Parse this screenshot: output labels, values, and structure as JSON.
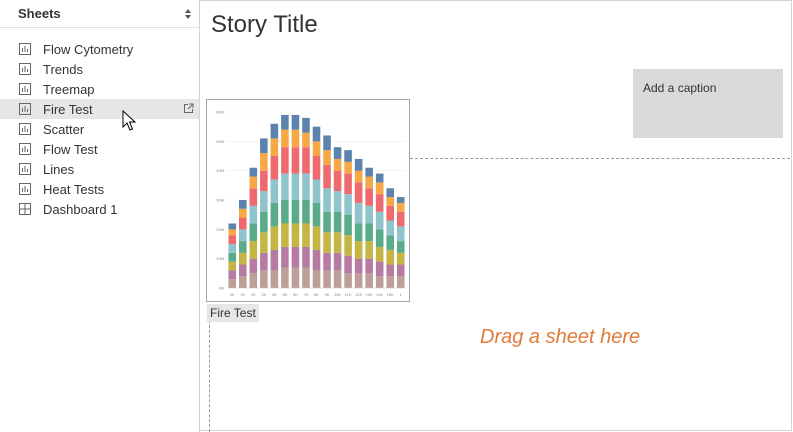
{
  "sidebar": {
    "title": "Sheets",
    "items": [
      {
        "label": "Flow Cytometry",
        "icon": "bar-chart-icon",
        "selected": false
      },
      {
        "label": "Trends",
        "icon": "bar-chart-icon",
        "selected": false
      },
      {
        "label": "Treemap",
        "icon": "bar-chart-icon",
        "selected": false
      },
      {
        "label": "Fire Test",
        "icon": "bar-chart-icon",
        "selected": true
      },
      {
        "label": "Scatter",
        "icon": "bar-chart-icon",
        "selected": false
      },
      {
        "label": "Flow Test",
        "icon": "bar-chart-icon",
        "selected": false
      },
      {
        "label": "Lines",
        "icon": "bar-chart-icon",
        "selected": false
      },
      {
        "label": "Heat Tests",
        "icon": "bar-chart-icon",
        "selected": false
      },
      {
        "label": "Dashboard 1",
        "icon": "dashboard-icon",
        "selected": false
      }
    ]
  },
  "story": {
    "title": "Story Title",
    "caption_placeholder": "Add a caption",
    "drop_hint": "Drag a sheet here",
    "sheet_label": "Fire Test"
  },
  "colors": {
    "accent_hint": "#e07b36",
    "series": [
      "#bd9e99",
      "#b77aa2",
      "#c4b545",
      "#5aab8a",
      "#8fc4cc",
      "#ee6a6e",
      "#f5a843",
      "#5c83ae"
    ]
  },
  "chart_data": {
    "type": "bar",
    "stacked": true,
    "categories": [
      "0K",
      "1K",
      "2K",
      "3K",
      "4K",
      "5K",
      "6K",
      "7K",
      "8K",
      "9K",
      "10K",
      "11K",
      "12K",
      "13K",
      "14K",
      "15K",
      "1"
    ],
    "y_tick_labels": [
      "0M",
      "10M",
      "20M",
      "30M",
      "40M",
      "50M",
      "60M"
    ],
    "ylim": [
      0,
      60
    ],
    "totals": [
      22,
      30,
      41,
      51,
      56,
      59,
      59,
      58,
      55,
      52,
      48,
      47,
      44,
      41,
      39,
      34,
      31
    ],
    "series": [
      {
        "values": [
          3,
          4,
          5,
          6,
          6,
          7,
          7,
          7,
          6,
          6,
          6,
          5,
          5,
          5,
          4,
          4,
          4
        ]
      },
      {
        "values": [
          3,
          4,
          5,
          6,
          7,
          7,
          7,
          7,
          7,
          6,
          6,
          6,
          5,
          5,
          5,
          4,
          4
        ]
      },
      {
        "values": [
          3,
          4,
          6,
          7,
          8,
          8,
          8,
          8,
          8,
          7,
          7,
          7,
          6,
          6,
          5,
          5,
          4
        ]
      },
      {
        "values": [
          3,
          4,
          6,
          7,
          8,
          8,
          8,
          8,
          8,
          7,
          7,
          7,
          6,
          6,
          6,
          5,
          4
        ]
      },
      {
        "values": [
          3,
          4,
          6,
          7,
          8,
          9,
          9,
          9,
          8,
          8,
          7,
          7,
          7,
          6,
          6,
          5,
          5
        ]
      },
      {
        "values": [
          3,
          4,
          6,
          7,
          8,
          9,
          9,
          9,
          8,
          8,
          7,
          7,
          7,
          6,
          6,
          5,
          5
        ]
      },
      {
        "values": [
          2,
          3,
          4,
          6,
          6,
          6,
          6,
          5,
          5,
          5,
          4,
          4,
          4,
          4,
          4,
          3,
          3
        ]
      },
      {
        "values": [
          2,
          3,
          3,
          5,
          5,
          5,
          5,
          5,
          5,
          5,
          4,
          4,
          4,
          3,
          3,
          3,
          2
        ]
      }
    ]
  }
}
